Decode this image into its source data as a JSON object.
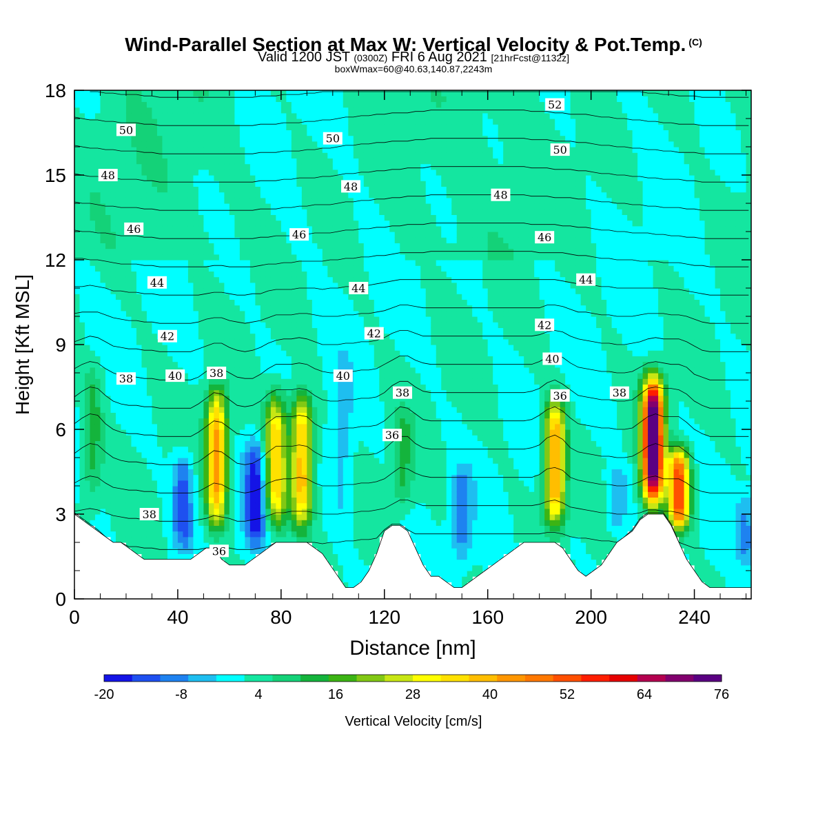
{
  "header": {
    "title": "Wind-Parallel Section at Max W: Vertical Velocity & Pot.Temp.",
    "copyright": "(C)",
    "valid_prefix": "Valid 1200 JST",
    "valid_utc": "(0300Z)",
    "valid_suffix": "FRI 6 Aug 2021",
    "forecast_tag": "[21hrFcst@1132z]",
    "box_info": "boxWmax=60@40.63,140.87,2243m"
  },
  "chart_data": {
    "type": "heatmap",
    "title": "Wind-Parallel Section at Max W: Vertical Velocity & Pot.Temp.",
    "xlabel": "Distance [nm]",
    "ylabel": "Height [Kft MSL]",
    "xlim": [
      0,
      262
    ],
    "ylim": [
      0,
      18
    ],
    "x_ticks": [
      0,
      40,
      80,
      120,
      160,
      200,
      240
    ],
    "y_ticks": [
      0,
      3,
      6,
      9,
      12,
      15,
      18
    ],
    "x_tick_labels": [
      "0",
      "40",
      "80",
      "120",
      "160",
      "200",
      "240"
    ],
    "y_tick_labels": [
      "0",
      "3",
      "6",
      "9",
      "12",
      "15",
      "18"
    ],
    "colorbar": {
      "label": "Vertical Velocity [cm/s]",
      "min": -20,
      "max": 76,
      "step": 4,
      "tick_values": [
        -20,
        -8,
        4,
        16,
        28,
        40,
        52,
        64,
        76
      ],
      "tick_labels": [
        "-20",
        "-8",
        "4",
        "16",
        "28",
        "40",
        "52",
        "64",
        "76"
      ],
      "colors": [
        "#1414e6",
        "#1e50f0",
        "#1e82f0",
        "#1ebef0",
        "#00ffff",
        "#14e6a0",
        "#14d278",
        "#14b43c",
        "#3cb414",
        "#82c814",
        "#c8e614",
        "#ffff00",
        "#ffe100",
        "#ffbe00",
        "#ff9600",
        "#ff7800",
        "#ff5000",
        "#ff1e00",
        "#e60000",
        "#b40050",
        "#82006e",
        "#5a0082"
      ]
    },
    "background_w": 0,
    "updrafts": [
      {
        "x": 7,
        "ylow": 3.2,
        "yhigh": 8.6,
        "w": 10
      },
      {
        "x": 55,
        "ylow": 2.2,
        "yhigh": 7.8,
        "w": 38
      },
      {
        "x": 78,
        "ylow": 2.2,
        "yhigh": 7.6,
        "w": 33
      },
      {
        "x": 88,
        "ylow": 2.2,
        "yhigh": 7.6,
        "w": 36
      },
      {
        "x": 127,
        "ylow": 3.0,
        "yhigh": 7.0,
        "w": 9
      },
      {
        "x": 186,
        "ylow": 2.2,
        "yhigh": 7.5,
        "w": 38
      },
      {
        "x": 224,
        "ylow": 3.0,
        "yhigh": 8.2,
        "w": 74
      },
      {
        "x": 234,
        "ylow": 2.2,
        "yhigh": 5.6,
        "w": 48
      }
    ],
    "downdrafts": [
      {
        "x": 42,
        "ylow": 1.5,
        "yhigh": 5.5,
        "w": -14
      },
      {
        "x": 70,
        "ylow": 1.5,
        "yhigh": 6.0,
        "w": -18
      },
      {
        "x": 104,
        "ylow": 2.0,
        "yhigh": 9.0,
        "w": -6
      },
      {
        "x": 150,
        "ylow": 1.0,
        "yhigh": 5.0,
        "w": -10
      },
      {
        "x": 210,
        "ylow": 2.0,
        "yhigh": 5.0,
        "w": -8
      },
      {
        "x": 260,
        "ylow": 1.0,
        "yhigh": 4.0,
        "w": -9
      }
    ],
    "terrain": {
      "x": [
        0,
        3,
        6,
        9,
        12,
        15,
        18,
        21,
        24,
        27,
        30,
        33,
        36,
        39,
        42,
        45,
        48,
        51,
        54,
        57,
        60,
        63,
        66,
        69,
        72,
        75,
        78,
        81,
        84,
        87,
        90,
        93,
        96,
        99,
        102,
        105,
        108,
        111,
        114,
        117,
        120,
        123,
        126,
        129,
        132,
        135,
        138,
        141,
        144,
        147,
        150,
        153,
        156,
        159,
        162,
        165,
        168,
        171,
        174,
        177,
        180,
        183,
        186,
        189,
        192,
        195,
        198,
        201,
        204,
        207,
        210,
        213,
        216,
        219,
        222,
        225,
        228,
        231,
        234,
        237,
        240,
        243,
        246,
        249,
        252,
        255,
        258,
        262
      ],
      "height_kft": [
        3.0,
        2.8,
        2.6,
        2.4,
        2.2,
        2.0,
        2.0,
        1.8,
        1.6,
        1.4,
        1.4,
        1.4,
        1.4,
        1.4,
        1.4,
        1.4,
        1.6,
        1.8,
        1.8,
        1.4,
        1.2,
        1.2,
        1.2,
        1.4,
        1.6,
        1.8,
        2.0,
        2.0,
        2.0,
        2.0,
        2.0,
        1.8,
        1.6,
        1.2,
        0.8,
        0.4,
        0.4,
        0.6,
        1.0,
        1.6,
        2.4,
        2.6,
        2.6,
        2.4,
        1.8,
        1.2,
        0.8,
        0.8,
        0.6,
        0.4,
        0.4,
        0.6,
        0.8,
        1.0,
        1.2,
        1.4,
        1.6,
        1.8,
        2.0,
        2.0,
        2.0,
        2.0,
        2.0,
        1.8,
        1.4,
        1.0,
        0.8,
        1.0,
        1.2,
        1.6,
        2.0,
        2.2,
        2.4,
        2.8,
        3.0,
        3.0,
        3.0,
        2.6,
        2.0,
        1.4,
        1.0,
        0.6,
        0.4,
        0.4,
        0.4,
        0.4,
        0.4,
        0.4
      ]
    },
    "theta_interval": 1,
    "theta_contours": [
      {
        "value": 52,
        "x": 186,
        "y": 17.5
      },
      {
        "value": 50,
        "x": 20,
        "y": 16.6
      },
      {
        "value": 50,
        "x": 100,
        "y": 16.3
      },
      {
        "value": 50,
        "x": 188,
        "y": 15.9
      },
      {
        "value": 48,
        "x": 13,
        "y": 15.0
      },
      {
        "value": 48,
        "x": 107,
        "y": 14.6
      },
      {
        "value": 48,
        "x": 165,
        "y": 14.3
      },
      {
        "value": 46,
        "x": 23,
        "y": 13.1
      },
      {
        "value": 46,
        "x": 87,
        "y": 12.9
      },
      {
        "value": 46,
        "x": 182,
        "y": 12.8
      },
      {
        "value": 44,
        "x": 32,
        "y": 11.2
      },
      {
        "value": 44,
        "x": 110,
        "y": 11.0
      },
      {
        "value": 44,
        "x": 198,
        "y": 11.3
      },
      {
        "value": 42,
        "x": 36,
        "y": 9.3
      },
      {
        "value": 42,
        "x": 116,
        "y": 9.4
      },
      {
        "value": 42,
        "x": 182,
        "y": 9.7
      },
      {
        "value": 40,
        "x": 39,
        "y": 7.9
      },
      {
        "value": 40,
        "x": 104,
        "y": 7.9
      },
      {
        "value": 40,
        "x": 185,
        "y": 8.5
      },
      {
        "value": 38,
        "x": 20,
        "y": 7.8
      },
      {
        "value": 38,
        "x": 55,
        "y": 8.0
      },
      {
        "value": 38,
        "x": 127,
        "y": 7.3
      },
      {
        "value": 38,
        "x": 211,
        "y": 7.3
      },
      {
        "value": 38,
        "x": 29,
        "y": 3.0
      },
      {
        "value": 36,
        "x": 123,
        "y": 5.8
      },
      {
        "value": 36,
        "x": 188,
        "y": 7.2
      },
      {
        "value": 36,
        "x": 56,
        "y": 1.7
      }
    ],
    "grid": false
  }
}
